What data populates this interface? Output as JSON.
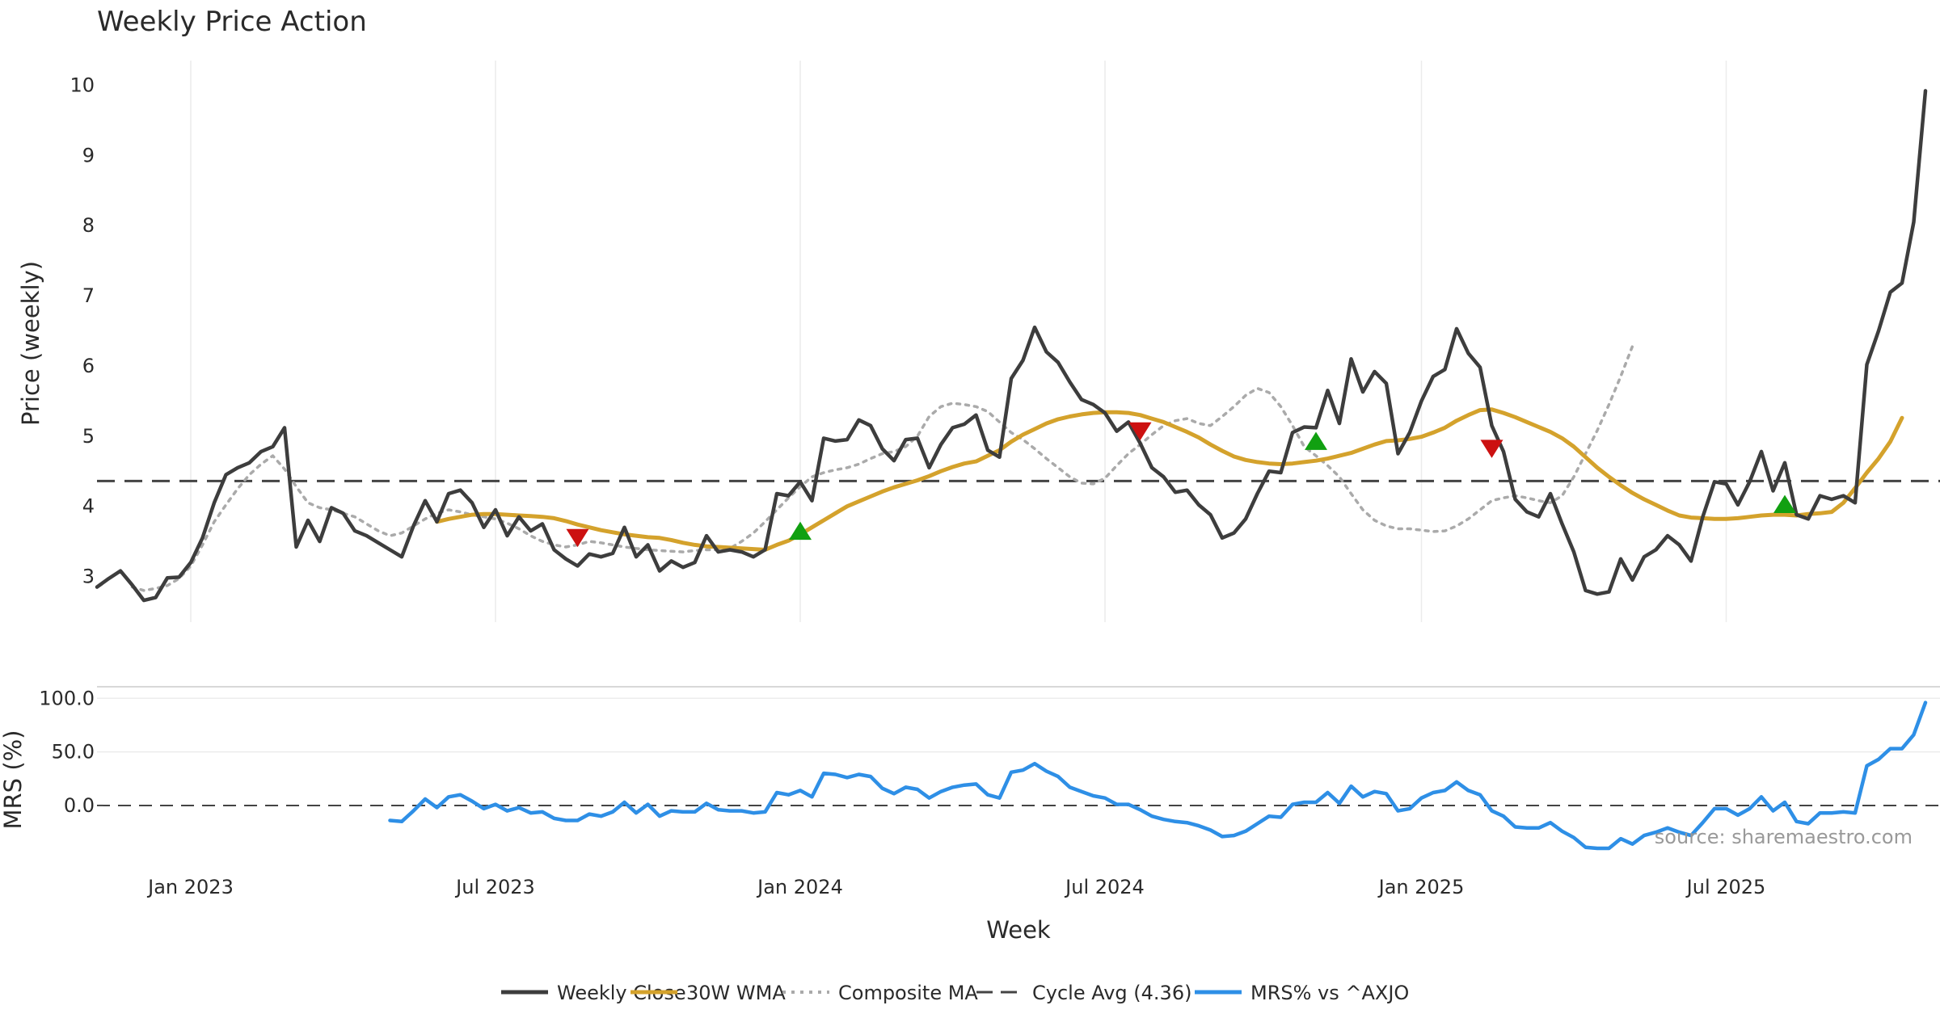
{
  "chart_data": [
    {
      "type": "line",
      "title": "Weekly Price Action",
      "ylabel": "Price (weekly)",
      "xlabel": "",
      "ylim": [
        2.35,
        10.35
      ],
      "yticks": [
        3,
        4,
        5,
        6,
        7,
        8,
        9,
        10
      ],
      "x_start": "2022-11-07",
      "x_step_days": 7,
      "x_count": 156,
      "grid": {
        "x": true,
        "y": false
      },
      "cycle_avg": 4.36,
      "cycle_avg_label": "Cycle Avg (4.36)",
      "series": [
        {
          "name": "Weekly Close",
          "color": "#3d3d3d",
          "style": "solid",
          "start_index": 0,
          "values": [
            2.85,
            2.97,
            3.08,
            2.88,
            2.66,
            2.7,
            2.98,
            2.99,
            3.2,
            3.55,
            4.05,
            4.45,
            4.55,
            4.62,
            4.78,
            4.85,
            5.12,
            3.42,
            3.8,
            3.5,
            3.98,
            3.9,
            3.65,
            3.58,
            3.48,
            3.38,
            3.28,
            3.72,
            4.08,
            3.78,
            4.18,
            4.23,
            4.05,
            3.7,
            3.95,
            3.58,
            3.85,
            3.65,
            3.75,
            3.38,
            3.25,
            3.15,
            3.32,
            3.28,
            3.33,
            3.7,
            3.28,
            3.45,
            3.08,
            3.22,
            3.13,
            3.2,
            3.58,
            3.35,
            3.38,
            3.35,
            3.28,
            3.38,
            4.18,
            4.15,
            4.35,
            4.08,
            4.97,
            4.93,
            4.95,
            5.23,
            5.15,
            4.82,
            4.65,
            4.95,
            4.97,
            4.55,
            4.88,
            5.12,
            5.17,
            5.3,
            4.8,
            4.7,
            5.82,
            6.08,
            6.55,
            6.2,
            6.05,
            5.77,
            5.52,
            5.45,
            5.33,
            5.07,
            5.2,
            4.9,
            4.55,
            4.42,
            4.2,
            4.23,
            4.02,
            3.88,
            3.55,
            3.62,
            3.82,
            4.18,
            4.5,
            4.48,
            5.05,
            5.13,
            5.12,
            5.65,
            5.18,
            6.1,
            5.63,
            5.92,
            5.75,
            4.75,
            5.05,
            5.5,
            5.85,
            5.95,
            6.53,
            6.18,
            5.98,
            5.15,
            4.78,
            4.1,
            3.92,
            3.85,
            4.18,
            3.75,
            3.35,
            2.8,
            2.75,
            2.78,
            3.25,
            2.95,
            3.28,
            3.38,
            3.58,
            3.45,
            3.22,
            3.85,
            4.35,
            4.32,
            4.02,
            4.35,
            4.78,
            4.22,
            4.62,
            3.88,
            3.82,
            4.15,
            4.1,
            4.15,
            4.05,
            6.02,
            6.5,
            7.05,
            7.18,
            8.05,
            9.92
          ]
        },
        {
          "name": "30W WMA",
          "color": "#d4a22c",
          "style": "solid",
          "start_index": 29,
          "values": [
            3.78,
            3.82,
            3.85,
            3.88,
            3.89,
            3.89,
            3.88,
            3.87,
            3.86,
            3.85,
            3.83,
            3.79,
            3.74,
            3.7,
            3.66,
            3.63,
            3.6,
            3.58,
            3.56,
            3.55,
            3.52,
            3.48,
            3.45,
            3.43,
            3.42,
            3.41,
            3.4,
            3.39,
            3.38,
            3.45,
            3.51,
            3.6,
            3.7,
            3.8,
            3.9,
            4.0,
            4.07,
            4.14,
            4.21,
            4.27,
            4.32,
            4.37,
            4.43,
            4.5,
            4.56,
            4.61,
            4.64,
            4.72,
            4.8,
            4.92,
            5.02,
            5.1,
            5.18,
            5.24,
            5.28,
            5.31,
            5.33,
            5.34,
            5.34,
            5.33,
            5.3,
            5.25,
            5.2,
            5.13,
            5.06,
            4.98,
            4.88,
            4.79,
            4.71,
            4.66,
            4.63,
            4.61,
            4.6,
            4.61,
            4.63,
            4.65,
            4.68,
            4.72,
            4.76,
            4.82,
            4.88,
            4.93,
            4.94,
            4.96,
            4.99,
            5.05,
            5.12,
            5.22,
            5.3,
            5.37,
            5.38,
            5.33,
            5.27,
            5.2,
            5.13,
            5.06,
            4.97,
            4.85,
            4.7,
            4.55,
            4.42,
            4.3,
            4.19,
            4.1,
            4.02,
            3.94,
            3.87,
            3.84,
            3.83,
            3.82,
            3.82,
            3.83,
            3.85,
            3.87,
            3.88,
            3.88,
            3.87,
            3.89,
            3.9,
            3.92,
            4.05,
            4.26,
            4.48,
            4.68,
            4.92,
            5.26
          ]
        },
        {
          "name": "Composite MA",
          "color": "#aaaaaa",
          "style": "dotted",
          "start_index": 3,
          "values": [
            2.85,
            2.8,
            2.83,
            2.87,
            2.97,
            3.15,
            3.45,
            3.78,
            4.02,
            4.25,
            4.45,
            4.6,
            4.72,
            4.53,
            4.28,
            4.05,
            3.98,
            3.95,
            3.9,
            3.85,
            3.75,
            3.65,
            3.58,
            3.62,
            3.72,
            3.82,
            3.9,
            3.95,
            3.92,
            3.88,
            3.85,
            3.82,
            3.76,
            3.68,
            3.58,
            3.5,
            3.45,
            3.42,
            3.45,
            3.5,
            3.48,
            3.45,
            3.42,
            3.4,
            3.38,
            3.37,
            3.36,
            3.35,
            3.37,
            3.38,
            3.38,
            3.4,
            3.5,
            3.62,
            3.78,
            3.95,
            4.12,
            4.28,
            4.42,
            4.48,
            4.52,
            4.55,
            4.6,
            4.68,
            4.75,
            4.78,
            4.85,
            5.0,
            5.28,
            5.42,
            5.47,
            5.45,
            5.42,
            5.35,
            5.2,
            5.05,
            4.95,
            4.82,
            4.68,
            4.55,
            4.42,
            4.33,
            4.32,
            4.4,
            4.58,
            4.75,
            4.88,
            5.02,
            5.15,
            5.22,
            5.25,
            5.18,
            5.15,
            5.28,
            5.42,
            5.58,
            5.68,
            5.62,
            5.42,
            5.15,
            4.85,
            4.72,
            4.58,
            4.42,
            4.18,
            3.95,
            3.8,
            3.72,
            3.68,
            3.68,
            3.66,
            3.64,
            3.65,
            3.72,
            3.82,
            3.95,
            4.08,
            4.12,
            4.15,
            4.12,
            4.08,
            4.05,
            4.15,
            4.42,
            4.75,
            5.08,
            5.45,
            5.85,
            6.28
          ]
        }
      ],
      "markers": [
        {
          "type": "sell",
          "index": 41,
          "value": 3.58,
          "color": "#cc1111"
        },
        {
          "type": "buy",
          "index": 60,
          "value": 3.62,
          "color": "#11a011"
        },
        {
          "type": "sell",
          "index": 89,
          "value": 5.1,
          "color": "#cc1111"
        },
        {
          "type": "buy",
          "index": 104,
          "value": 4.9,
          "color": "#11a011"
        },
        {
          "type": "sell",
          "index": 119,
          "value": 4.85,
          "color": "#cc1111"
        },
        {
          "type": "buy",
          "index": 144,
          "value": 4.0,
          "color": "#11a011"
        }
      ]
    },
    {
      "type": "line",
      "title": "",
      "ylabel": "MRS (%)",
      "xlabel": "Week",
      "ylim": [
        -40,
        107
      ],
      "yticks": [
        0,
        50,
        100
      ],
      "ytick_labels": [
        "0.0",
        "50.0",
        "100.0"
      ],
      "zero_line": 0,
      "x_ticks": [
        {
          "label": "Jan 2023",
          "index": 8
        },
        {
          "label": "Jul 2023",
          "index": 34
        },
        {
          "label": "Jan 2024",
          "index": 60
        },
        {
          "label": "Jul 2024",
          "index": 86
        },
        {
          "label": "Jan 2025",
          "index": 113
        },
        {
          "label": "Jul 2025",
          "index": 139
        }
      ],
      "series": [
        {
          "name": "MRS% vs ^AXJO",
          "color": "#2e8fe6",
          "style": "solid",
          "start_index": 25,
          "values": [
            -14,
            -15,
            -5,
            6,
            -2,
            8,
            10,
            4,
            -3,
            1,
            -5,
            -2,
            -7,
            -6,
            -12,
            -14,
            -14,
            -8,
            -10,
            -6,
            3,
            -7,
            1,
            -10,
            -5,
            -6,
            -6,
            2,
            -4,
            -5,
            -5,
            -7,
            -6,
            12,
            10,
            14,
            8,
            30,
            29,
            26,
            29,
            27,
            16,
            11,
            17,
            15,
            7,
            13,
            17,
            19,
            20,
            10,
            7,
            31,
            33,
            39,
            32,
            27,
            17,
            13,
            9,
            7,
            1,
            1,
            -4,
            -10,
            -13,
            -15,
            -16,
            -19,
            -23,
            -29,
            -28,
            -24,
            -17,
            -10,
            -11,
            1,
            3,
            3,
            12,
            2,
            18,
            8,
            13,
            11,
            -5,
            -3,
            7,
            12,
            14,
            22,
            14,
            10,
            -5,
            -10,
            -20,
            -21,
            -21,
            -16,
            -24,
            -30,
            -39,
            -40,
            -40,
            -31,
            -36,
            -28,
            -25,
            -21,
            -25,
            -28,
            -16,
            -3,
            -3,
            -9,
            -3,
            8,
            -5,
            3,
            -15,
            -17,
            -7,
            -7,
            -6,
            -7,
            37,
            43,
            53,
            53,
            66,
            96
          ]
        }
      ],
      "source": "source: sharemaestro.com"
    }
  ],
  "legend": [
    {
      "label": "Weekly Close",
      "color": "#3d3d3d",
      "style": "solid"
    },
    {
      "label": "30W WMA",
      "color": "#d4a22c",
      "style": "solid"
    },
    {
      "label": "Composite MA",
      "color": "#aaaaaa",
      "style": "dotted"
    },
    {
      "label": "Cycle Avg (4.36)",
      "color": "#444444",
      "style": "dashed"
    },
    {
      "label": "MRS% vs ^AXJO",
      "color": "#2e8fe6",
      "style": "solid"
    }
  ]
}
